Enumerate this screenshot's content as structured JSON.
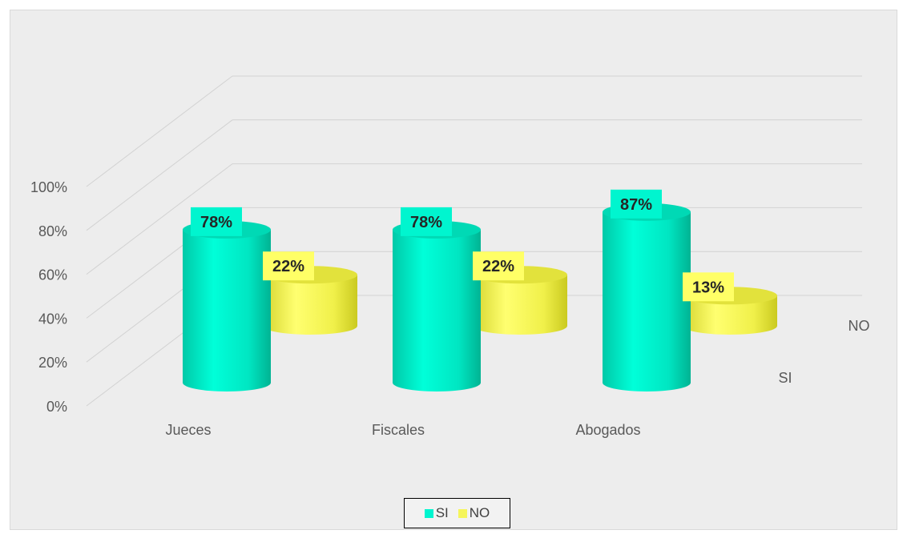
{
  "chart_data": {
    "type": "bar",
    "variant": "3d-cylinder",
    "categories": [
      "Jueces",
      "Fiscales",
      "Abogados"
    ],
    "series": [
      {
        "name": "SI",
        "values": [
          78,
          78,
          87
        ],
        "labels": [
          "78%",
          "78%",
          "87%"
        ],
        "color": "#00f5cf"
      },
      {
        "name": "NO",
        "values": [
          22,
          22,
          13
        ],
        "labels": [
          "22%",
          "22%",
          "13%"
        ],
        "color": "#f5f55a"
      }
    ],
    "yticks": [
      "0%",
      "20%",
      "40%",
      "60%",
      "80%",
      "100%"
    ],
    "ylim": [
      0,
      100
    ],
    "grid": true,
    "legend": "bottom",
    "depth_axis_labels": [
      "SI",
      "NO"
    ],
    "label_box_colors": {
      "SI": "#00f5cf",
      "NO": "#ffff66"
    }
  }
}
